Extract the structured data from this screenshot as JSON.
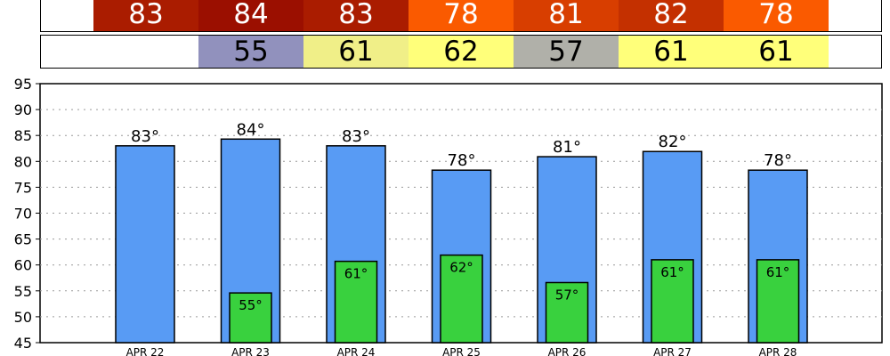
{
  "forecast_strips": {
    "highs": [
      {
        "value": "83",
        "color": "#aa1c00"
      },
      {
        "value": "84",
        "color": "#9b0f00"
      },
      {
        "value": "83",
        "color": "#aa1c00"
      },
      {
        "value": "78",
        "color": "#fa5a00"
      },
      {
        "value": "81",
        "color": "#d83e00"
      },
      {
        "value": "82",
        "color": "#c43000"
      },
      {
        "value": "78",
        "color": "#fa5a00"
      }
    ],
    "lows": [
      {
        "value": "",
        "color": "#ffffff"
      },
      {
        "value": "55",
        "color": "#9191bd"
      },
      {
        "value": "61",
        "color": "#f0ef88"
      },
      {
        "value": "62",
        "color": "#ffff7a"
      },
      {
        "value": "57",
        "color": "#b0b0a9"
      },
      {
        "value": "61",
        "color": "#ffff7a"
      },
      {
        "value": "61",
        "color": "#ffff7a"
      }
    ]
  },
  "chart_data": {
    "type": "bar",
    "categories": [
      "APR 22",
      "APR 23",
      "APR 24",
      "APR 25",
      "APR 26",
      "APR 27",
      "APR 28"
    ],
    "series": [
      {
        "values": [
          83,
          84.3,
          83,
          78.3,
          80.9,
          81.9,
          78.3
        ],
        "color": "#589bf4"
      },
      {
        "values": [
          null,
          54.6,
          60.7,
          61.9,
          56.6,
          61,
          61
        ],
        "color": "#39d13e"
      }
    ],
    "high_labels": [
      "83°",
      "84°",
      "83°",
      "78°",
      "81°",
      "82°",
      "78°"
    ],
    "low_labels": [
      "",
      "55°",
      "61°",
      "62°",
      "57°",
      "61°",
      "61°"
    ],
    "yticks": [
      "95",
      "90",
      "85",
      "80",
      "75",
      "70",
      "65",
      "60",
      "55",
      "50",
      "45"
    ],
    "ylim": [
      45,
      95
    ],
    "grid": true
  }
}
